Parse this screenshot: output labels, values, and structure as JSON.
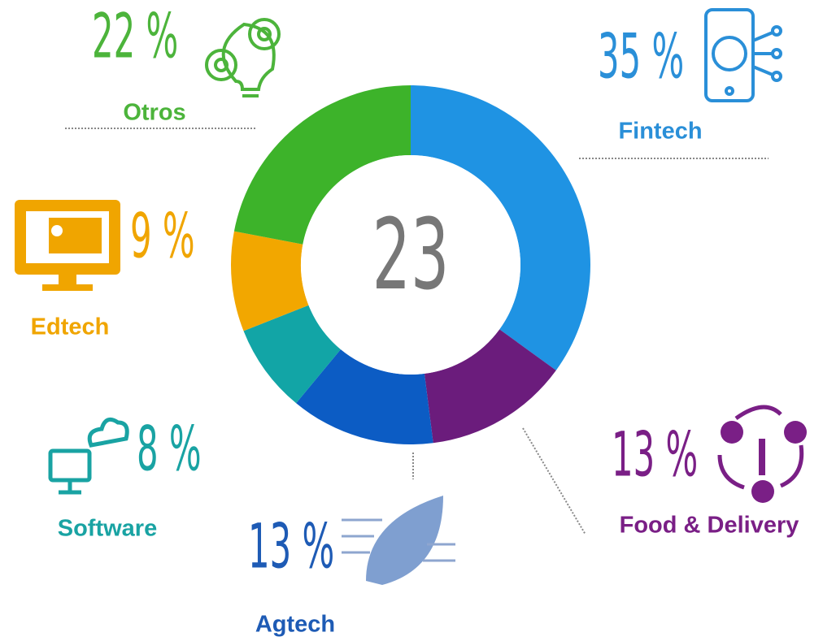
{
  "chart_data": {
    "type": "donut",
    "center_label": "23",
    "categories": [
      "Fintech",
      "Food & Delivery",
      "Agtech",
      "Software",
      "Edtech",
      "Otros"
    ],
    "values": [
      35,
      13,
      13,
      8,
      9,
      22
    ],
    "value_labels": [
      "35 %",
      "13 %",
      "13 %",
      "8 %",
      "9 %",
      "22 %"
    ],
    "colors": [
      "#1f93e3",
      "#6b1c7c",
      "#0c5cc4",
      "#12a5a6",
      "#f2a700",
      "#3db32a"
    ],
    "label_colors": [
      "#2a8fd8",
      "#7a1f86",
      "#1e5bb5",
      "#19a3a3",
      "#f0a500",
      "#4cb43b"
    ]
  }
}
